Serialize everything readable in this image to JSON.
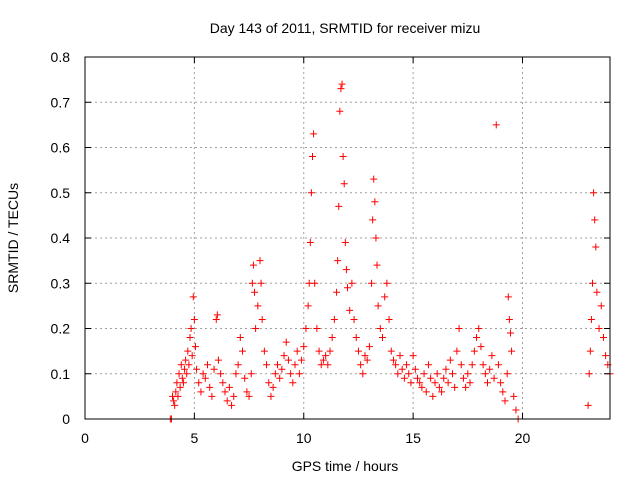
{
  "chart_data": {
    "type": "scatter",
    "title": "Day 143 of 2011, SRMTID for receiver mizu",
    "xlabel": "GPS time / hours",
    "ylabel": "SRMTID / TECUs",
    "xlim": [
      0,
      24
    ],
    "ylim": [
      0,
      0.8
    ],
    "xticks": [
      0,
      5,
      10,
      15,
      20
    ],
    "xtick_labels": [
      "0",
      "5",
      "10",
      "15",
      "20"
    ],
    "yticks": [
      0,
      0.1,
      0.2,
      0.3,
      0.4,
      0.5,
      0.6,
      0.7,
      0.8
    ],
    "ytick_labels": [
      "0",
      "0.1",
      "0.2",
      "0.3",
      "0.4",
      "0.5",
      "0.6",
      "0.7",
      "0.8"
    ],
    "grid": true,
    "marker": "+",
    "color": "#ff0000",
    "series": [
      {
        "name": "SRMTID",
        "points": [
          [
            3.9,
            0.0
          ],
          [
            3.95,
            0.0
          ],
          [
            4.0,
            0.05
          ],
          [
            4.05,
            0.04
          ],
          [
            4.1,
            0.03
          ],
          [
            4.15,
            0.06
          ],
          [
            4.2,
            0.08
          ],
          [
            4.25,
            0.05
          ],
          [
            4.3,
            0.1
          ],
          [
            4.35,
            0.07
          ],
          [
            4.4,
            0.12
          ],
          [
            4.45,
            0.09
          ],
          [
            4.5,
            0.08
          ],
          [
            4.55,
            0.11
          ],
          [
            4.6,
            0.13
          ],
          [
            4.65,
            0.1
          ],
          [
            4.7,
            0.15
          ],
          [
            4.75,
            0.12
          ],
          [
            4.8,
            0.18
          ],
          [
            4.85,
            0.2
          ],
          [
            4.9,
            0.14
          ],
          [
            4.95,
            0.27
          ],
          [
            5.0,
            0.22
          ],
          [
            5.05,
            0.16
          ],
          [
            5.1,
            0.11
          ],
          [
            5.2,
            0.08
          ],
          [
            5.3,
            0.06
          ],
          [
            5.4,
            0.1
          ],
          [
            5.5,
            0.09
          ],
          [
            5.6,
            0.12
          ],
          [
            5.7,
            0.07
          ],
          [
            5.8,
            0.05
          ],
          [
            5.9,
            0.11
          ],
          [
            6.0,
            0.22
          ],
          [
            6.05,
            0.23
          ],
          [
            6.1,
            0.13
          ],
          [
            6.2,
            0.1
          ],
          [
            6.3,
            0.08
          ],
          [
            6.4,
            0.06
          ],
          [
            6.5,
            0.04
          ],
          [
            6.6,
            0.07
          ],
          [
            6.7,
            0.03
          ],
          [
            6.8,
            0.05
          ],
          [
            6.9,
            0.1
          ],
          [
            7.0,
            0.12
          ],
          [
            7.1,
            0.18
          ],
          [
            7.2,
            0.15
          ],
          [
            7.3,
            0.09
          ],
          [
            7.4,
            0.06
          ],
          [
            7.5,
            0.05
          ],
          [
            7.6,
            0.1
          ],
          [
            7.65,
            0.3
          ],
          [
            7.7,
            0.34
          ],
          [
            7.75,
            0.28
          ],
          [
            7.8,
            0.2
          ],
          [
            7.9,
            0.25
          ],
          [
            8.0,
            0.35
          ],
          [
            8.05,
            0.3
          ],
          [
            8.1,
            0.22
          ],
          [
            8.2,
            0.15
          ],
          [
            8.3,
            0.12
          ],
          [
            8.4,
            0.08
          ],
          [
            8.5,
            0.05
          ],
          [
            8.6,
            0.07
          ],
          [
            8.7,
            0.1
          ],
          [
            8.8,
            0.12
          ],
          [
            8.9,
            0.09
          ],
          [
            9.0,
            0.11
          ],
          [
            9.1,
            0.14
          ],
          [
            9.2,
            0.17
          ],
          [
            9.3,
            0.13
          ],
          [
            9.4,
            0.1
          ],
          [
            9.5,
            0.08
          ],
          [
            9.6,
            0.12
          ],
          [
            9.7,
            0.15
          ],
          [
            9.8,
            0.1
          ],
          [
            9.9,
            0.13
          ],
          [
            10.0,
            0.16
          ],
          [
            10.1,
            0.2
          ],
          [
            10.2,
            0.25
          ],
          [
            10.25,
            0.3
          ],
          [
            10.3,
            0.39
          ],
          [
            10.35,
            0.5
          ],
          [
            10.4,
            0.58
          ],
          [
            10.45,
            0.63
          ],
          [
            10.5,
            0.3
          ],
          [
            10.6,
            0.2
          ],
          [
            10.7,
            0.15
          ],
          [
            10.8,
            0.12
          ],
          [
            10.9,
            0.13
          ],
          [
            11.0,
            0.14
          ],
          [
            11.1,
            0.12
          ],
          [
            11.2,
            0.15
          ],
          [
            11.3,
            0.18
          ],
          [
            11.4,
            0.22
          ],
          [
            11.5,
            0.28
          ],
          [
            11.55,
            0.35
          ],
          [
            11.6,
            0.47
          ],
          [
            11.65,
            0.68
          ],
          [
            11.7,
            0.73
          ],
          [
            11.75,
            0.74
          ],
          [
            11.8,
            0.58
          ],
          [
            11.85,
            0.52
          ],
          [
            11.9,
            0.39
          ],
          [
            11.95,
            0.33
          ],
          [
            12.0,
            0.29
          ],
          [
            12.1,
            0.24
          ],
          [
            12.2,
            0.3
          ],
          [
            12.3,
            0.22
          ],
          [
            12.4,
            0.18
          ],
          [
            12.5,
            0.15
          ],
          [
            12.6,
            0.12
          ],
          [
            12.7,
            0.1
          ],
          [
            12.8,
            0.14
          ],
          [
            12.9,
            0.13
          ],
          [
            13.0,
            0.16
          ],
          [
            13.1,
            0.3
          ],
          [
            13.15,
            0.44
          ],
          [
            13.2,
            0.53
          ],
          [
            13.25,
            0.48
          ],
          [
            13.3,
            0.4
          ],
          [
            13.35,
            0.34
          ],
          [
            13.4,
            0.25
          ],
          [
            13.5,
            0.2
          ],
          [
            13.6,
            0.18
          ],
          [
            13.7,
            0.27
          ],
          [
            13.8,
            0.3
          ],
          [
            13.9,
            0.22
          ],
          [
            14.0,
            0.15
          ],
          [
            14.1,
            0.13
          ],
          [
            14.2,
            0.12
          ],
          [
            14.3,
            0.1
          ],
          [
            14.4,
            0.14
          ],
          [
            14.5,
            0.11
          ],
          [
            14.6,
            0.09
          ],
          [
            14.7,
            0.12
          ],
          [
            14.8,
            0.1
          ],
          [
            14.9,
            0.08
          ],
          [
            15.0,
            0.14
          ],
          [
            15.1,
            0.11
          ],
          [
            15.2,
            0.09
          ],
          [
            15.3,
            0.08
          ],
          [
            15.4,
            0.07
          ],
          [
            15.5,
            0.1
          ],
          [
            15.6,
            0.06
          ],
          [
            15.7,
            0.12
          ],
          [
            15.8,
            0.09
          ],
          [
            15.9,
            0.05
          ],
          [
            16.0,
            0.08
          ],
          [
            16.1,
            0.1
          ],
          [
            16.2,
            0.07
          ],
          [
            16.3,
            0.06
          ],
          [
            16.4,
            0.09
          ],
          [
            16.5,
            0.11
          ],
          [
            16.6,
            0.08
          ],
          [
            16.7,
            0.13
          ],
          [
            16.8,
            0.1
          ],
          [
            16.9,
            0.07
          ],
          [
            17.0,
            0.15
          ],
          [
            17.1,
            0.2
          ],
          [
            17.2,
            0.12
          ],
          [
            17.3,
            0.09
          ],
          [
            17.4,
            0.07
          ],
          [
            17.5,
            0.1
          ],
          [
            17.6,
            0.08
          ],
          [
            17.7,
            0.12
          ],
          [
            17.8,
            0.15
          ],
          [
            17.9,
            0.18
          ],
          [
            18.0,
            0.2
          ],
          [
            18.1,
            0.16
          ],
          [
            18.2,
            0.12
          ],
          [
            18.3,
            0.1
          ],
          [
            18.4,
            0.08
          ],
          [
            18.5,
            0.11
          ],
          [
            18.6,
            0.14
          ],
          [
            18.7,
            0.09
          ],
          [
            18.8,
            0.65
          ],
          [
            18.9,
            0.12
          ],
          [
            19.0,
            0.08
          ],
          [
            19.1,
            0.06
          ],
          [
            19.2,
            0.04
          ],
          [
            19.3,
            0.1
          ],
          [
            19.35,
            0.27
          ],
          [
            19.4,
            0.22
          ],
          [
            19.45,
            0.19
          ],
          [
            19.5,
            0.15
          ],
          [
            19.6,
            0.05
          ],
          [
            19.7,
            0.02
          ],
          [
            19.8,
            0.0
          ],
          [
            23.0,
            0.03
          ],
          [
            23.05,
            0.1
          ],
          [
            23.1,
            0.15
          ],
          [
            23.15,
            0.22
          ],
          [
            23.2,
            0.3
          ],
          [
            23.25,
            0.5
          ],
          [
            23.3,
            0.44
          ],
          [
            23.35,
            0.38
          ],
          [
            23.4,
            0.28
          ],
          [
            23.5,
            0.2
          ],
          [
            23.6,
            0.25
          ],
          [
            23.7,
            0.18
          ],
          [
            23.8,
            0.14
          ],
          [
            23.9,
            0.12
          ],
          [
            24.0,
            0.1
          ]
        ]
      }
    ]
  }
}
